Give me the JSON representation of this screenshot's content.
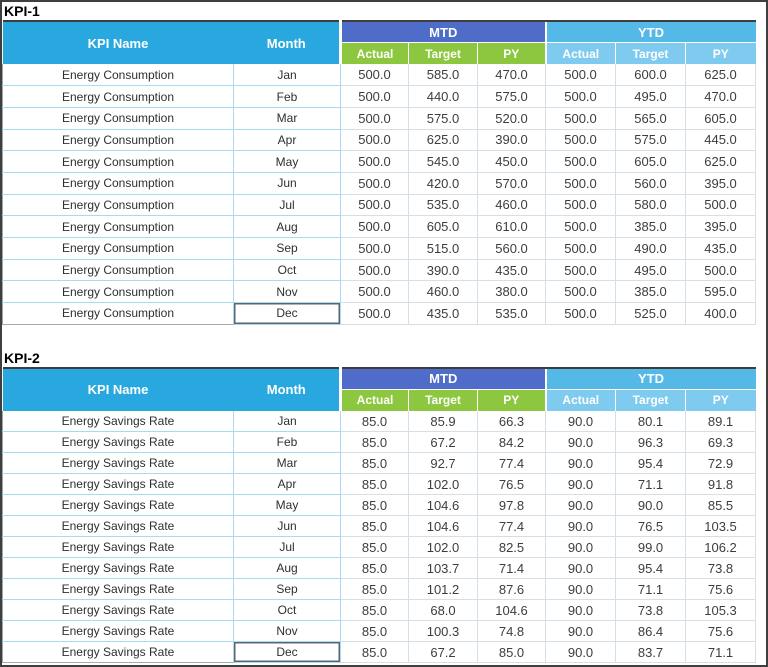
{
  "colors": {
    "page_border": "#3f3f3f",
    "dark_top_line": "#3d3d3d",
    "header_cyan": "#29a8e0",
    "mtd_band_blue": "#4e6cc8",
    "mtd_sub_green": "#8dc63f",
    "ytd_band_blue": "#55b9e8",
    "ytd_sub_blue": "#7fcaef",
    "grid_cyan": "#a8dbf2",
    "grid_gray": "#d6dfe6"
  },
  "tables": [
    {
      "title": "KPI-1",
      "header": {
        "kpi_name": "KPI Name",
        "month": "Month",
        "mtd": "MTD",
        "ytd": "YTD",
        "sub": [
          "Actual",
          "Target",
          "PY"
        ]
      },
      "rows": [
        {
          "kpi": "Energy Consumption",
          "month": "Jan",
          "mtd": [
            "500.0",
            "585.0",
            "470.0"
          ],
          "ytd": [
            "500.0",
            "600.0",
            "625.0"
          ]
        },
        {
          "kpi": "Energy Consumption",
          "month": "Feb",
          "mtd": [
            "500.0",
            "440.0",
            "575.0"
          ],
          "ytd": [
            "500.0",
            "495.0",
            "470.0"
          ]
        },
        {
          "kpi": "Energy Consumption",
          "month": "Mar",
          "mtd": [
            "500.0",
            "575.0",
            "520.0"
          ],
          "ytd": [
            "500.0",
            "565.0",
            "605.0"
          ]
        },
        {
          "kpi": "Energy Consumption",
          "month": "Apr",
          "mtd": [
            "500.0",
            "625.0",
            "390.0"
          ],
          "ytd": [
            "500.0",
            "575.0",
            "445.0"
          ]
        },
        {
          "kpi": "Energy Consumption",
          "month": "May",
          "mtd": [
            "500.0",
            "545.0",
            "450.0"
          ],
          "ytd": [
            "500.0",
            "605.0",
            "625.0"
          ]
        },
        {
          "kpi": "Energy Consumption",
          "month": "Jun",
          "mtd": [
            "500.0",
            "420.0",
            "570.0"
          ],
          "ytd": [
            "500.0",
            "560.0",
            "395.0"
          ]
        },
        {
          "kpi": "Energy Consumption",
          "month": "Jul",
          "mtd": [
            "500.0",
            "535.0",
            "460.0"
          ],
          "ytd": [
            "500.0",
            "580.0",
            "500.0"
          ]
        },
        {
          "kpi": "Energy Consumption",
          "month": "Aug",
          "mtd": [
            "500.0",
            "605.0",
            "610.0"
          ],
          "ytd": [
            "500.0",
            "385.0",
            "395.0"
          ]
        },
        {
          "kpi": "Energy Consumption",
          "month": "Sep",
          "mtd": [
            "500.0",
            "515.0",
            "560.0"
          ],
          "ytd": [
            "500.0",
            "490.0",
            "435.0"
          ]
        },
        {
          "kpi": "Energy Consumption",
          "month": "Oct",
          "mtd": [
            "500.0",
            "390.0",
            "435.0"
          ],
          "ytd": [
            "500.0",
            "495.0",
            "500.0"
          ]
        },
        {
          "kpi": "Energy Consumption",
          "month": "Nov",
          "mtd": [
            "500.0",
            "460.0",
            "380.0"
          ],
          "ytd": [
            "500.0",
            "385.0",
            "595.0"
          ]
        },
        {
          "kpi": "Energy Consumption",
          "month": "Dec",
          "mtd": [
            "500.0",
            "435.0",
            "535.0"
          ],
          "ytd": [
            "500.0",
            "525.0",
            "400.0"
          ]
        }
      ]
    },
    {
      "title": "KPI-2",
      "header": {
        "kpi_name": "KPI Name",
        "month": "Month",
        "mtd": "MTD",
        "ytd": "YTD",
        "sub": [
          "Actual",
          "Target",
          "PY"
        ]
      },
      "rows": [
        {
          "kpi": "Energy Savings Rate",
          "month": "Jan",
          "mtd": [
            "85.0",
            "85.9",
            "66.3"
          ],
          "ytd": [
            "90.0",
            "80.1",
            "89.1"
          ]
        },
        {
          "kpi": "Energy Savings Rate",
          "month": "Feb",
          "mtd": [
            "85.0",
            "67.2",
            "84.2"
          ],
          "ytd": [
            "90.0",
            "96.3",
            "69.3"
          ]
        },
        {
          "kpi": "Energy Savings Rate",
          "month": "Mar",
          "mtd": [
            "85.0",
            "92.7",
            "77.4"
          ],
          "ytd": [
            "90.0",
            "95.4",
            "72.9"
          ]
        },
        {
          "kpi": "Energy Savings Rate",
          "month": "Apr",
          "mtd": [
            "85.0",
            "102.0",
            "76.5"
          ],
          "ytd": [
            "90.0",
            "71.1",
            "91.8"
          ]
        },
        {
          "kpi": "Energy Savings Rate",
          "month": "May",
          "mtd": [
            "85.0",
            "104.6",
            "97.8"
          ],
          "ytd": [
            "90.0",
            "90.0",
            "85.5"
          ]
        },
        {
          "kpi": "Energy Savings Rate",
          "month": "Jun",
          "mtd": [
            "85.0",
            "104.6",
            "77.4"
          ],
          "ytd": [
            "90.0",
            "76.5",
            "103.5"
          ]
        },
        {
          "kpi": "Energy Savings Rate",
          "month": "Jul",
          "mtd": [
            "85.0",
            "102.0",
            "82.5"
          ],
          "ytd": [
            "90.0",
            "99.0",
            "106.2"
          ]
        },
        {
          "kpi": "Energy Savings Rate",
          "month": "Aug",
          "mtd": [
            "85.0",
            "103.7",
            "71.4"
          ],
          "ytd": [
            "90.0",
            "95.4",
            "73.8"
          ]
        },
        {
          "kpi": "Energy Savings Rate",
          "month": "Sep",
          "mtd": [
            "85.0",
            "101.2",
            "87.6"
          ],
          "ytd": [
            "90.0",
            "71.1",
            "75.6"
          ]
        },
        {
          "kpi": "Energy Savings Rate",
          "month": "Oct",
          "mtd": [
            "85.0",
            "68.0",
            "104.6"
          ],
          "ytd": [
            "90.0",
            "73.8",
            "105.3"
          ]
        },
        {
          "kpi": "Energy Savings Rate",
          "month": "Nov",
          "mtd": [
            "85.0",
            "100.3",
            "74.8"
          ],
          "ytd": [
            "90.0",
            "86.4",
            "75.6"
          ]
        },
        {
          "kpi": "Energy Savings Rate",
          "month": "Dec",
          "mtd": [
            "85.0",
            "67.2",
            "85.0"
          ],
          "ytd": [
            "90.0",
            "83.7",
            "71.1"
          ]
        }
      ]
    }
  ]
}
